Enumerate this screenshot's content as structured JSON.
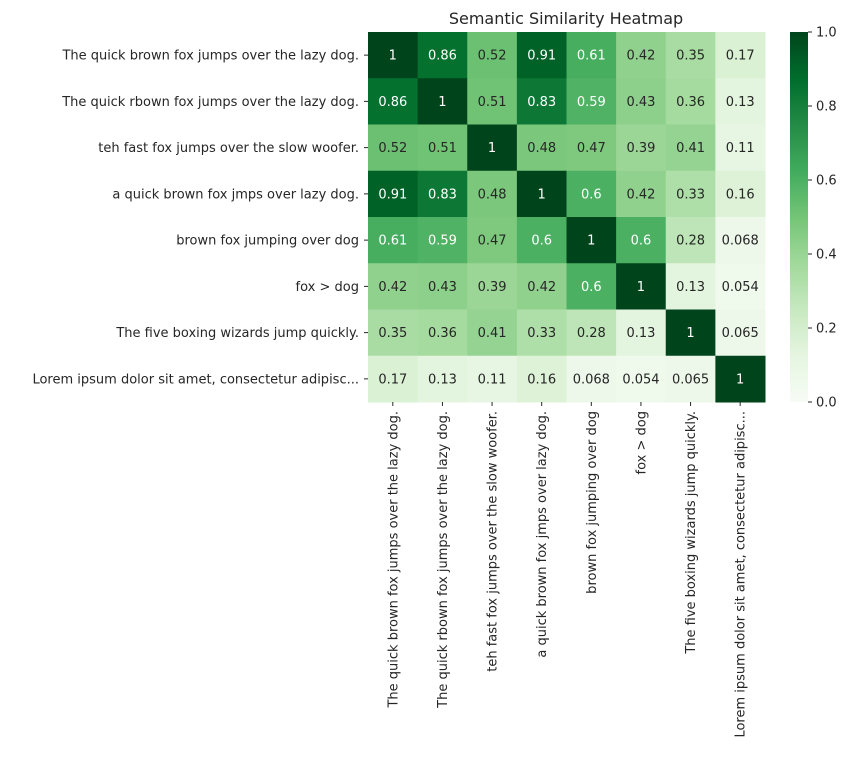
{
  "chart_data": {
    "type": "heatmap",
    "title": "Semantic Similarity Heatmap",
    "xlabel": "",
    "ylabel": "",
    "colormap": "Greens",
    "vmin": 0.0,
    "vmax": 1.0,
    "colorbar_ticks": [
      "0.0",
      "0.2",
      "0.4",
      "0.6",
      "0.8",
      "1.0"
    ],
    "labels": [
      "The quick brown fox jumps over the lazy dog.",
      "The quick rbown fox jumps over the lazy dog.",
      "teh fast fox jumps over the slow woofer.",
      "a quick brown fox jmps over lazy dog.",
      "brown fox jumping over dog",
      "fox > dog",
      "The five boxing wizards jump quickly.",
      "Lorem ipsum dolor sit amet, consectetur adipisc..."
    ],
    "values": [
      [
        1,
        0.86,
        0.52,
        0.91,
        0.61,
        0.42,
        0.35,
        0.17
      ],
      [
        0.86,
        1,
        0.51,
        0.83,
        0.59,
        0.43,
        0.36,
        0.13
      ],
      [
        0.52,
        0.51,
        1,
        0.48,
        0.47,
        0.39,
        0.41,
        0.11
      ],
      [
        0.91,
        0.83,
        0.48,
        1,
        0.6,
        0.42,
        0.33,
        0.16
      ],
      [
        0.61,
        0.59,
        0.47,
        0.6,
        1,
        0.6,
        0.28,
        0.068
      ],
      [
        0.42,
        0.43,
        0.39,
        0.42,
        0.6,
        1,
        0.13,
        0.054
      ],
      [
        0.35,
        0.36,
        0.41,
        0.33,
        0.28,
        0.13,
        1,
        0.065
      ],
      [
        0.17,
        0.13,
        0.11,
        0.16,
        0.068,
        0.054,
        0.065,
        1
      ]
    ]
  }
}
